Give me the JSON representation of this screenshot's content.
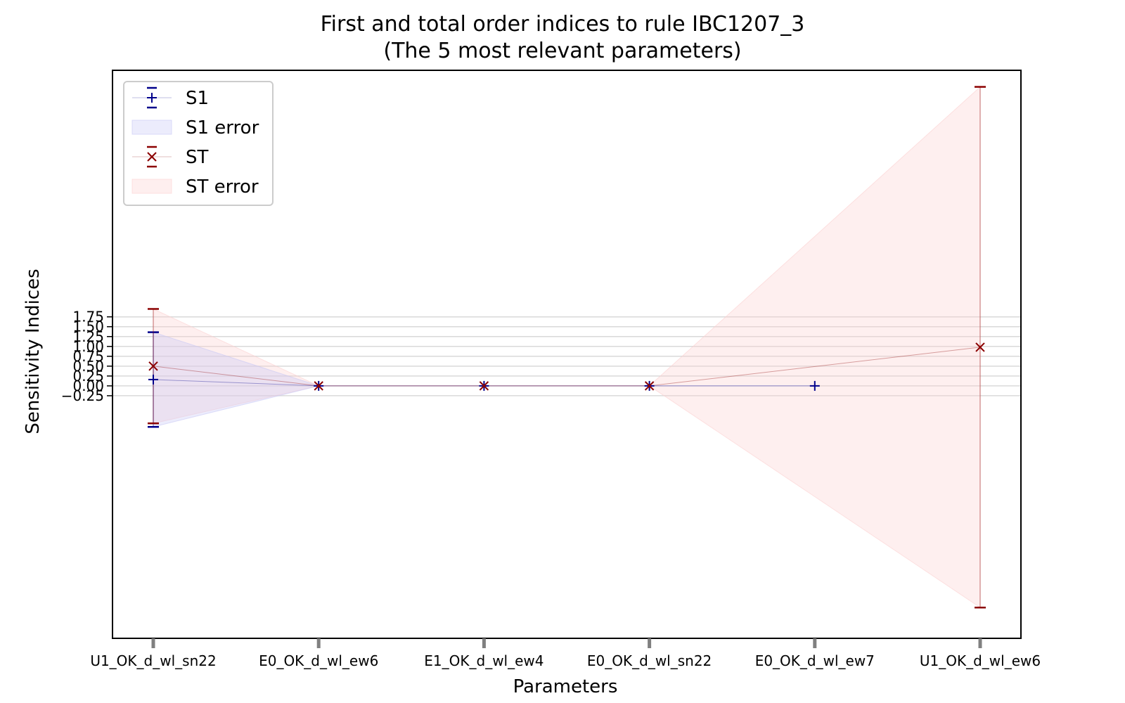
{
  "chart_data": {
    "type": "line",
    "title": "First and total order indices to rule IBC1207_3",
    "subtitle": "(The 5 most relevant parameters)",
    "xlabel": "Parameters",
    "ylabel": "Sensitivity Indices",
    "categories": [
      "U1_OK_d_wl_sn22",
      "E0_OK_d_wl_ew6",
      "E1_OK_d_wl_ew4",
      "E0_OK_d_wl_sn22",
      "E0_OK_d_wl_ew7",
      "U1_OK_d_wl_ew6"
    ],
    "y_ticks": [
      -0.25,
      0.0,
      0.25,
      0.5,
      0.75,
      1.0,
      1.25,
      1.5,
      1.75
    ],
    "y_tick_labels": [
      "−0.25",
      "0.00",
      "0.25",
      "0.50",
      "0.75",
      "1.00",
      "1.25",
      "1.50",
      "1.75"
    ],
    "ylim": [
      -6.4,
      8.0
    ],
    "grid": "horizontal",
    "legend_position": "upper left",
    "series": [
      {
        "name": "S1",
        "marker": "+",
        "color": "#00008b",
        "x": [
          "U1_OK_d_wl_sn22",
          "E0_OK_d_wl_ew6",
          "E1_OK_d_wl_ew4",
          "E0_OK_d_wl_sn22",
          "E0_OK_d_wl_ew7"
        ],
        "values": [
          0.16,
          0.0,
          0.0,
          0.0,
          0.0
        ],
        "error": [
          1.2,
          0.0,
          0.0,
          0.0,
          0.0
        ],
        "error_band_name": "S1 error",
        "band_color": "#c8c8f5"
      },
      {
        "name": "ST",
        "marker": "x",
        "color": "#8b0000",
        "x": [
          "U1_OK_d_wl_sn22",
          "E0_OK_d_wl_ew6",
          "E1_OK_d_wl_ew4",
          "E0_OK_d_wl_sn22",
          "U1_OK_d_wl_ew6"
        ],
        "values": [
          0.5,
          0.0,
          0.0,
          0.0,
          0.98
        ],
        "error": [
          1.45,
          0.0,
          0.0,
          0.0,
          6.6
        ],
        "error_band_name": "ST error",
        "band_color": "#fbd0d0"
      }
    ]
  }
}
